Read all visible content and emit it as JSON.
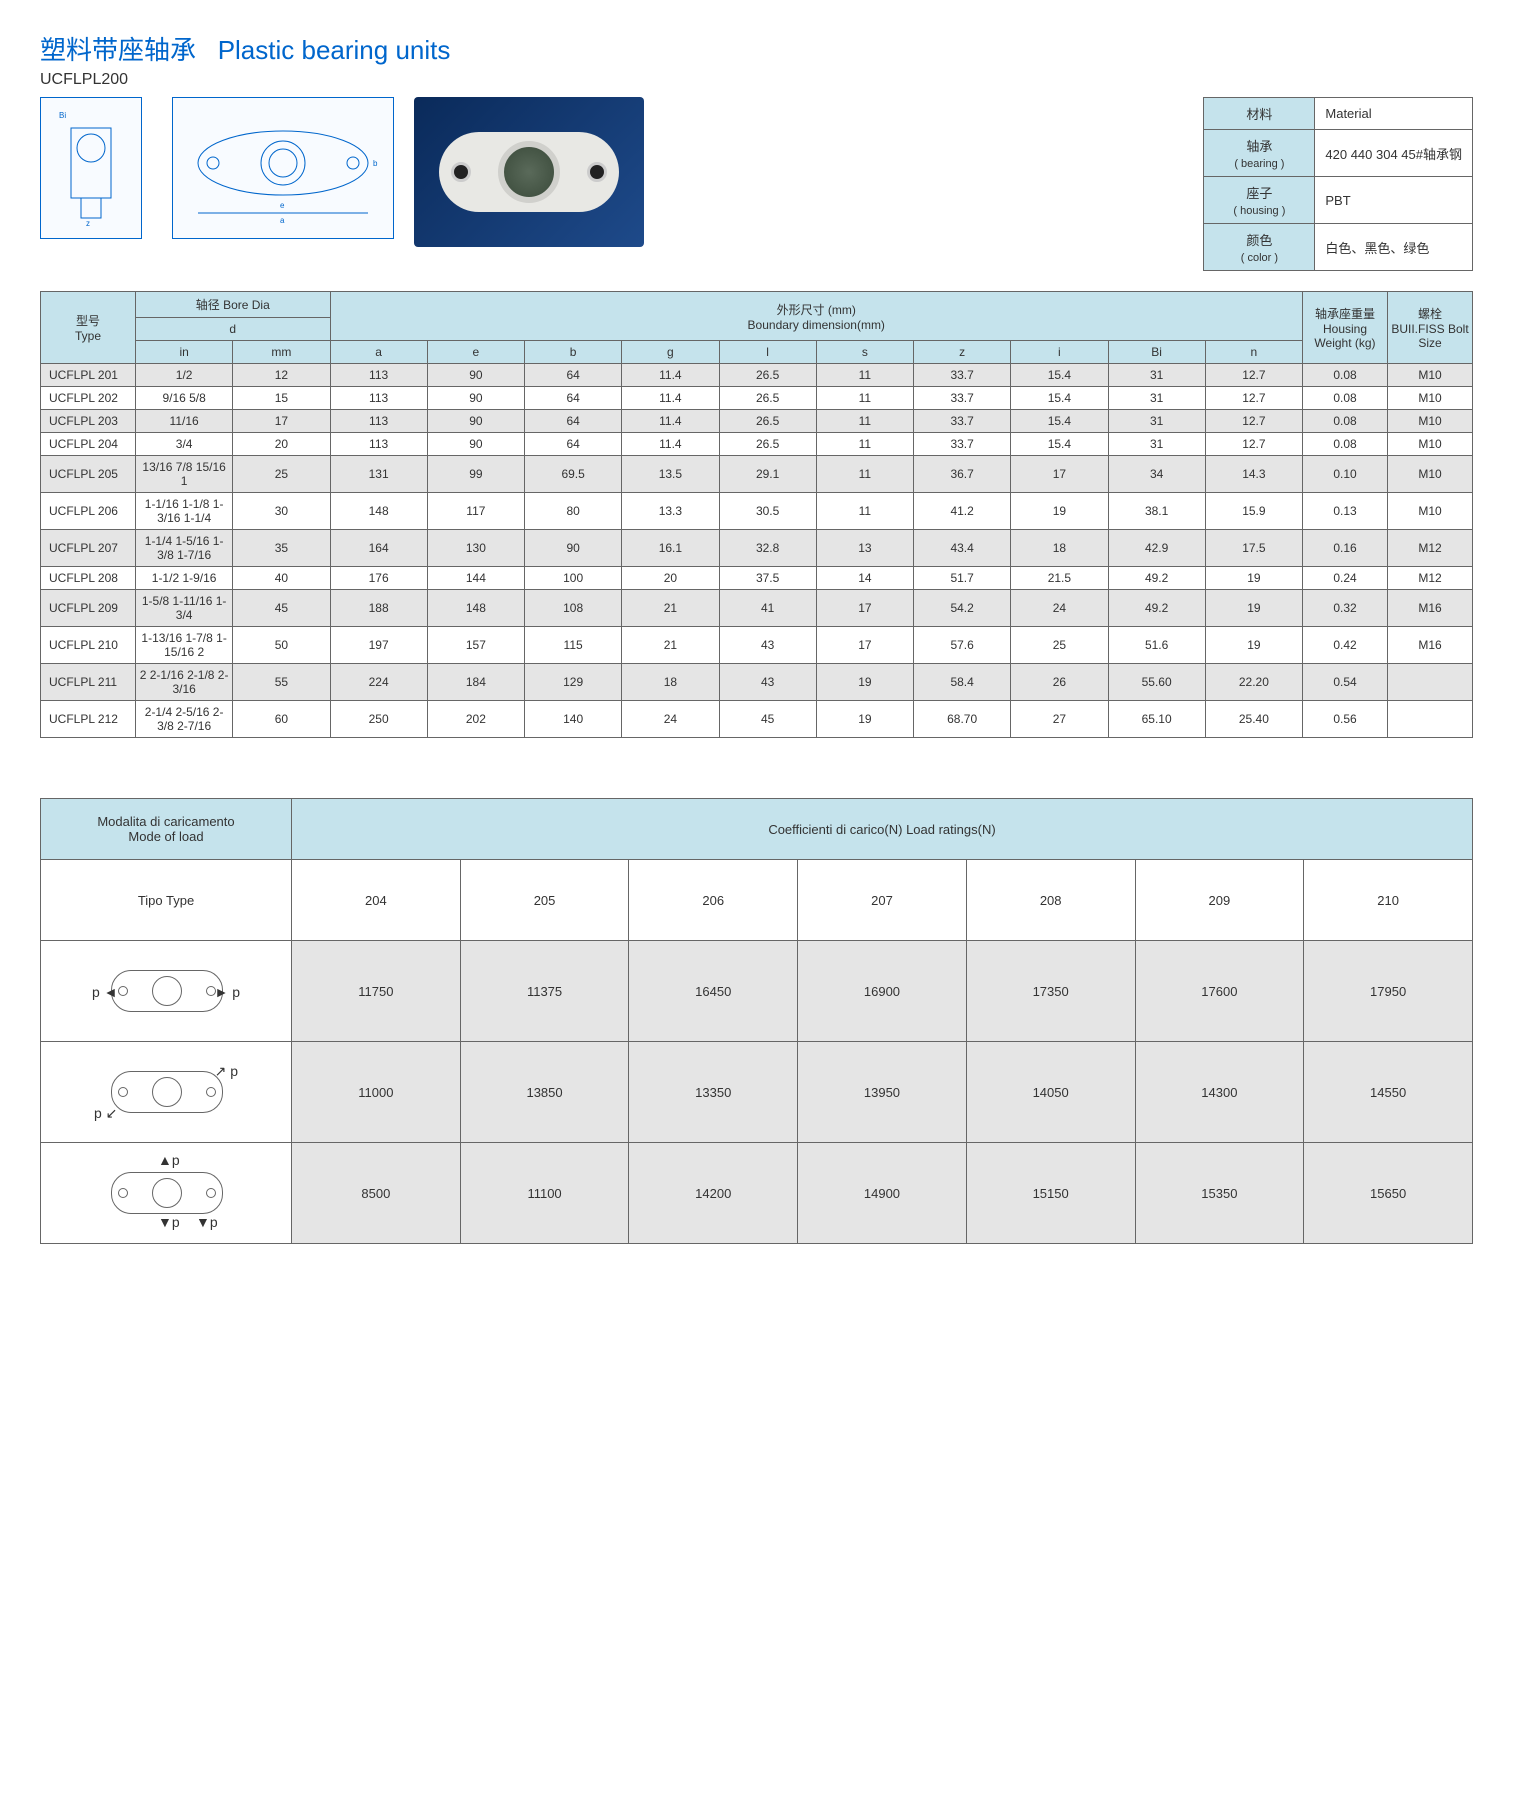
{
  "title_cn": "塑料带座轴承",
  "title_en": "Plastic bearing units",
  "series": "UCFLPL200",
  "colors": {
    "header_bg": "#c5e3ec",
    "row_alt_bg": "#e5e5e5",
    "border": "#666666",
    "title_color": "#0066cc",
    "photo_bg": "#1e4a8a"
  },
  "material": {
    "rows": [
      {
        "cn": "材料",
        "en": "",
        "val": "Material"
      },
      {
        "cn": "轴承",
        "en": "( bearing )",
        "val": "420 440 304  45#轴承钢"
      },
      {
        "cn": "座子",
        "en": "( housing )",
        "val": "PBT"
      },
      {
        "cn": "颜色",
        "en": "( color )",
        "val": "白色、黑色、绿色"
      }
    ]
  },
  "spec": {
    "head": {
      "type_cn": "型号",
      "type_en": "Type",
      "bore_cn": "轴径 Bore Dia",
      "bore_d": "d",
      "bore_in": "in",
      "bore_mm": "mm",
      "dim_cn": "外形尺寸 (mm)",
      "dim_en": "Boundary dimension(mm)",
      "dims": [
        "a",
        "e",
        "b",
        "g",
        "l",
        "s",
        "z",
        "i",
        "Bi",
        "n"
      ],
      "wt_cn": "轴承座重量",
      "wt_en": "Housing Weight (kg)",
      "bolt_cn": "螺栓",
      "bolt_en": "BUII.FISS Bolt Size"
    },
    "rows": [
      {
        "type": "UCFLPL 201",
        "in": "1/2",
        "mm": "12",
        "d": [
          "113",
          "90",
          "64",
          "11.4",
          "26.5",
          "11",
          "33.7",
          "15.4",
          "31",
          "12.7"
        ],
        "wt": "0.08",
        "bolt": "M10"
      },
      {
        "type": "UCFLPL 202",
        "in": "9/16  5/8",
        "mm": "15",
        "d": [
          "113",
          "90",
          "64",
          "11.4",
          "26.5",
          "11",
          "33.7",
          "15.4",
          "31",
          "12.7"
        ],
        "wt": "0.08",
        "bolt": "M10"
      },
      {
        "type": "UCFLPL 203",
        "in": "11/16",
        "mm": "17",
        "d": [
          "113",
          "90",
          "64",
          "11.4",
          "26.5",
          "11",
          "33.7",
          "15.4",
          "31",
          "12.7"
        ],
        "wt": "0.08",
        "bolt": "M10"
      },
      {
        "type": "UCFLPL 204",
        "in": "3/4",
        "mm": "20",
        "d": [
          "113",
          "90",
          "64",
          "11.4",
          "26.5",
          "11",
          "33.7",
          "15.4",
          "31",
          "12.7"
        ],
        "wt": "0.08",
        "bolt": "M10"
      },
      {
        "type": "UCFLPL 205",
        "in": "13/16  7/8  15/16  1",
        "mm": "25",
        "d": [
          "131",
          "99",
          "69.5",
          "13.5",
          "29.1",
          "11",
          "36.7",
          "17",
          "34",
          "14.3"
        ],
        "wt": "0.10",
        "bolt": "M10"
      },
      {
        "type": "UCFLPL 206",
        "in": "1-1/16  1-1/8  1-3/16  1-1/4",
        "mm": "30",
        "d": [
          "148",
          "117",
          "80",
          "13.3",
          "30.5",
          "11",
          "41.2",
          "19",
          "38.1",
          "15.9"
        ],
        "wt": "0.13",
        "bolt": "M10"
      },
      {
        "type": "UCFLPL 207",
        "in": "1-1/4  1-5/16  1-3/8  1-7/16",
        "mm": "35",
        "d": [
          "164",
          "130",
          "90",
          "16.1",
          "32.8",
          "13",
          "43.4",
          "18",
          "42.9",
          "17.5"
        ],
        "wt": "0.16",
        "bolt": "M12"
      },
      {
        "type": "UCFLPL 208",
        "in": "1-1/2  1-9/16",
        "mm": "40",
        "d": [
          "176",
          "144",
          "100",
          "20",
          "37.5",
          "14",
          "51.7",
          "21.5",
          "49.2",
          "19"
        ],
        "wt": "0.24",
        "bolt": "M12"
      },
      {
        "type": "UCFLPL 209",
        "in": "1-5/8  1-11/16  1-3/4",
        "mm": "45",
        "d": [
          "188",
          "148",
          "108",
          "21",
          "41",
          "17",
          "54.2",
          "24",
          "49.2",
          "19"
        ],
        "wt": "0.32",
        "bolt": "M16"
      },
      {
        "type": "UCFLPL 210",
        "in": "1-13/16  1-7/8  1-15/16  2",
        "mm": "50",
        "d": [
          "197",
          "157",
          "115",
          "21",
          "43",
          "17",
          "57.6",
          "25",
          "51.6",
          "19"
        ],
        "wt": "0.42",
        "bolt": "M16"
      },
      {
        "type": "UCFLPL 211",
        "in": "2  2-1/16  2-1/8  2-3/16",
        "mm": "55",
        "d": [
          "224",
          "184",
          "129",
          "18",
          "43",
          "19",
          "58.4",
          "26",
          "55.60",
          "22.20"
        ],
        "wt": "0.54",
        "bolt": ""
      },
      {
        "type": "UCFLPL 212",
        "in": "2-1/4  2-5/16  2-3/8  2-7/16",
        "mm": "60",
        "d": [
          "250",
          "202",
          "140",
          "24",
          "45",
          "19",
          "68.70",
          "27",
          "65.10",
          "25.40"
        ],
        "wt": "0.56",
        "bolt": ""
      }
    ]
  },
  "load": {
    "mode_it": "Modalita di caricamento",
    "mode_en": "Mode of load",
    "coef_it": "Coefficienti di carico(N)  Load ratings(N)",
    "tipo": "Tipo Type",
    "types": [
      "204",
      "205",
      "206",
      "207",
      "208",
      "209",
      "210"
    ],
    "modes": [
      {
        "label": "axial-horizontal",
        "vals": [
          "11750",
          "11375",
          "16450",
          "16900",
          "17350",
          "17600",
          "17950"
        ]
      },
      {
        "label": "axial-diagonal",
        "vals": [
          "11000",
          "13850",
          "13350",
          "13950",
          "14050",
          "14300",
          "14550"
        ]
      },
      {
        "label": "axial-vertical",
        "vals": [
          "8500",
          "11100",
          "14200",
          "14900",
          "15150",
          "15350",
          "15650"
        ]
      }
    ]
  }
}
